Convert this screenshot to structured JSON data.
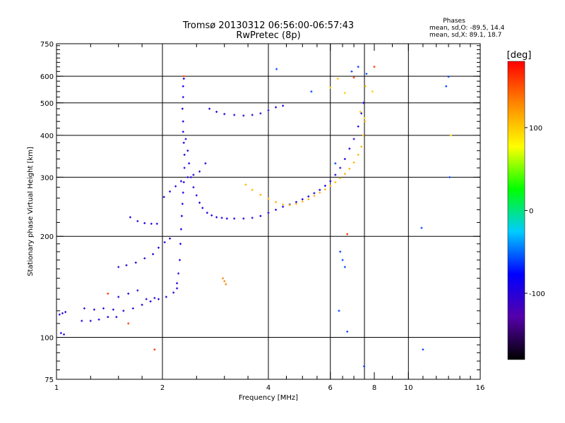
{
  "chart_data": {
    "type": "scatter",
    "title": "Tromsø 20130312 06:56:00-06:57:43",
    "subtitle": "RwPretec (8p)",
    "xlabel": "Frequency [MHz]",
    "ylabel": "Stationary phase Virtual Height [km]",
    "x_scale": "log2",
    "y_scale": "log",
    "xlim": [
      1,
      16
    ],
    "ylim": [
      75,
      750
    ],
    "x_ticks": [
      1,
      2,
      4,
      6,
      8,
      10,
      16
    ],
    "x_tick_labels": [
      "1",
      "2",
      "4",
      "6",
      "8",
      "10",
      "16"
    ],
    "x_grid": [
      2,
      4,
      6,
      7.5,
      10
    ],
    "y_ticks": [
      75,
      100,
      200,
      300,
      400,
      500,
      600,
      750
    ],
    "y_tick_labels": [
      "75",
      "100",
      "200",
      "300",
      "400",
      "500",
      "600",
      "750"
    ],
    "y_grid": [
      100,
      200,
      300,
      400,
      500,
      600
    ],
    "grid": true,
    "info": {
      "heading": "Phases",
      "line_o": "mean, sd,O: -89.5, 14.4",
      "line_x": "mean, sd,X:  89.1, 18.7"
    },
    "colorbar": {
      "label": "[deg]",
      "range": [
        -180,
        180
      ],
      "ticks": [
        100,
        0,
        -100
      ],
      "tick_labels": [
        "100",
        "0",
        "-100"
      ],
      "colormap": "rainbow",
      "colors": [
        "#000000",
        "#5500aa",
        "#0000ff",
        "#00ccff",
        "#00ff00",
        "#ffff00",
        "#ff8800",
        "#ff0000"
      ]
    },
    "series": [
      {
        "color_deg": -100,
        "points": [
          [
            1.02,
            117
          ],
          [
            1.04,
            118
          ],
          [
            1.06,
            119
          ],
          [
            1.03,
            103
          ],
          [
            1.05,
            102
          ],
          [
            1.18,
            112
          ],
          [
            1.25,
            112
          ],
          [
            1.32,
            113
          ],
          [
            1.4,
            115
          ],
          [
            1.48,
            115
          ],
          [
            1.2,
            122
          ],
          [
            1.28,
            121
          ],
          [
            1.36,
            122
          ],
          [
            1.45,
            121
          ],
          [
            1.55,
            120
          ],
          [
            1.65,
            122
          ],
          [
            1.75,
            125
          ],
          [
            1.85,
            128
          ],
          [
            1.95,
            130
          ],
          [
            2.05,
            132
          ],
          [
            2.15,
            136
          ],
          [
            2.2,
            140
          ],
          [
            1.5,
            132
          ],
          [
            1.6,
            135
          ],
          [
            1.7,
            138
          ],
          [
            1.8,
            130
          ],
          [
            1.9,
            131
          ]
        ]
      },
      {
        "color_deg": -100,
        "points": [
          [
            1.5,
            162
          ],
          [
            1.58,
            164
          ],
          [
            1.68,
            167
          ],
          [
            1.78,
            172
          ],
          [
            1.88,
            177
          ],
          [
            1.95,
            185
          ],
          [
            2.03,
            192
          ],
          [
            2.1,
            197
          ],
          [
            1.62,
            228
          ],
          [
            1.7,
            222
          ],
          [
            1.78,
            219
          ],
          [
            1.86,
            218
          ],
          [
            1.93,
            218
          ]
        ]
      },
      {
        "color_deg": -90,
        "points": [
          [
            2.2,
            145
          ],
          [
            2.22,
            155
          ],
          [
            2.24,
            170
          ],
          [
            2.25,
            190
          ],
          [
            2.26,
            210
          ],
          [
            2.27,
            230
          ],
          [
            2.28,
            250
          ],
          [
            2.29,
            270
          ],
          [
            2.3,
            290
          ],
          [
            2.31,
            320
          ],
          [
            2.31,
            350
          ],
          [
            2.3,
            380
          ],
          [
            2.29,
            410
          ],
          [
            2.29,
            440
          ],
          [
            2.28,
            480
          ],
          [
            2.29,
            520
          ],
          [
            2.29,
            560
          ],
          [
            2.3,
            590
          ]
        ]
      },
      {
        "color_deg": -95,
        "points": [
          [
            2.33,
            390
          ],
          [
            2.36,
            360
          ],
          [
            2.38,
            330
          ],
          [
            2.41,
            300
          ],
          [
            2.45,
            280
          ],
          [
            2.5,
            265
          ],
          [
            2.55,
            252
          ],
          [
            2.6,
            243
          ],
          [
            2.68,
            235
          ],
          [
            2.76,
            231
          ],
          [
            2.85,
            228
          ],
          [
            2.95,
            227
          ],
          [
            3.05,
            226
          ],
          [
            3.2,
            226
          ],
          [
            3.4,
            226
          ],
          [
            3.6,
            227
          ],
          [
            3.8,
            230
          ],
          [
            4.0,
            235
          ],
          [
            4.2,
            240
          ],
          [
            4.4,
            245
          ],
          [
            4.6,
            249
          ],
          [
            4.8,
            253
          ],
          [
            5.0,
            258
          ],
          [
            5.2,
            263
          ],
          [
            5.4,
            269
          ],
          [
            5.6,
            275
          ],
          [
            5.8,
            283
          ],
          [
            6.0,
            292
          ],
          [
            6.2,
            305
          ],
          [
            6.4,
            320
          ],
          [
            6.6,
            340
          ],
          [
            6.8,
            365
          ],
          [
            7.0,
            390
          ],
          [
            7.2,
            425
          ],
          [
            7.35,
            465
          ],
          [
            7.45,
            500
          ]
        ]
      },
      {
        "color_deg": -100,
        "points": [
          [
            2.02,
            262
          ],
          [
            2.1,
            272
          ],
          [
            2.18,
            282
          ],
          [
            2.26,
            292
          ],
          [
            2.36,
            300
          ],
          [
            2.45,
            305
          ],
          [
            2.55,
            312
          ],
          [
            2.65,
            330
          ]
        ]
      },
      {
        "color_deg": -100,
        "points": [
          [
            2.72,
            480
          ],
          [
            2.85,
            470
          ],
          [
            3.0,
            463
          ],
          [
            3.2,
            460
          ],
          [
            3.4,
            458
          ],
          [
            3.6,
            460
          ],
          [
            3.8,
            465
          ],
          [
            4.0,
            475
          ],
          [
            4.2,
            485
          ],
          [
            4.4,
            490
          ]
        ]
      },
      {
        "color_deg": 110,
        "points": [
          [
            3.45,
            285
          ],
          [
            3.6,
            275
          ],
          [
            3.8,
            266
          ],
          [
            4.0,
            259
          ],
          [
            4.2,
            253
          ],
          [
            4.4,
            249
          ],
          [
            4.6,
            248
          ],
          [
            4.8,
            250
          ],
          [
            5.0,
            254
          ],
          [
            5.2,
            258
          ],
          [
            5.4,
            264
          ],
          [
            5.6,
            270
          ],
          [
            5.8,
            276
          ],
          [
            6.0,
            283
          ],
          [
            6.2,
            290
          ],
          [
            6.4,
            298
          ],
          [
            6.6,
            307
          ],
          [
            6.8,
            318
          ],
          [
            7.0,
            332
          ],
          [
            7.2,
            350
          ],
          [
            7.35,
            370
          ],
          [
            7.45,
            400
          ],
          [
            7.52,
            440
          ]
        ]
      },
      {
        "color_deg": 130,
        "points": [
          [
            2.97,
            150
          ],
          [
            3.0,
            147
          ],
          [
            3.03,
            144
          ]
        ]
      },
      {
        "color_deg": -60,
        "points": [
          [
            6.2,
            330
          ],
          [
            6.5,
            170
          ],
          [
            6.6,
            162
          ],
          [
            6.4,
            180
          ],
          [
            6.35,
            120
          ],
          [
            6.7,
            104
          ],
          [
            7.48,
            82
          ],
          [
            4.22,
            630
          ],
          [
            11.0,
            92
          ],
          [
            13.0,
            598
          ],
          [
            12.8,
            560
          ],
          [
            13.1,
            300
          ],
          [
            10.9,
            212
          ],
          [
            5.3,
            540
          ],
          [
            7.2,
            640
          ],
          [
            7.6,
            610
          ],
          [
            6.9,
            620
          ]
        ]
      },
      {
        "color_deg": 100,
        "points": [
          [
            6.0,
            555
          ],
          [
            6.3,
            590
          ],
          [
            7.55,
            560
          ],
          [
            7.9,
            540
          ],
          [
            6.6,
            535
          ],
          [
            13.2,
            400
          ],
          [
            7.3,
            470
          ],
          [
            7.5,
            450
          ]
        ]
      },
      {
        "color_deg": 160,
        "points": [
          [
            1.4,
            135
          ],
          [
            1.6,
            110
          ],
          [
            1.9,
            92
          ],
          [
            2.3,
            600
          ],
          [
            7.0,
            595
          ],
          [
            8.0,
            640
          ],
          [
            6.7,
            203
          ]
        ]
      }
    ]
  }
}
